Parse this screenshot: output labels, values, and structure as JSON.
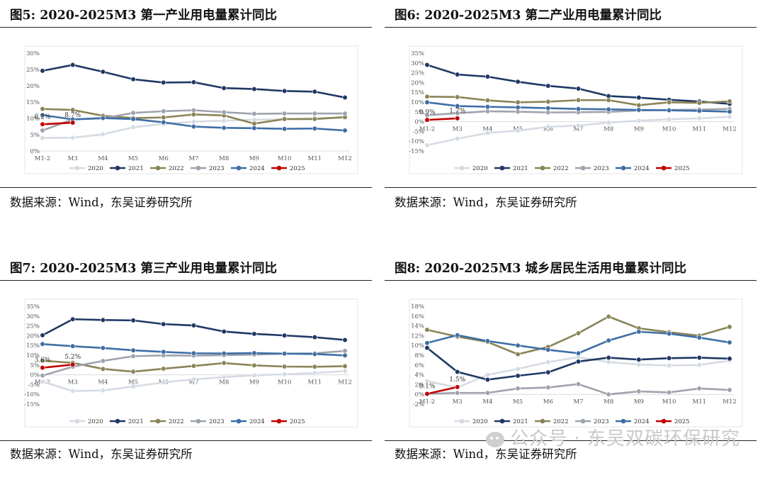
{
  "watermark": "公众号 · 东吴双碳环保研究",
  "panels": [
    {
      "title": "图5:  2020-2025M3 第一产业用电量累计同比",
      "source": "数据来源：Wind，东吴证券研究所"
    },
    {
      "title": "图6:  2020-2025M3 第二产业用电量累计同比",
      "source": "数据来源：Wind，东吴证券研究所"
    },
    {
      "title": "图7:  2020-2025M3 第三产业用电量累计同比",
      "source": "数据来源：Wind，东吴证券研究所"
    },
    {
      "title": "图8:  2020-2025M3 城乡居民生活用电量累计同比",
      "source": "数据来源：Wind，东吴证券研究所"
    }
  ],
  "chart_data": [
    {
      "type": "line",
      "categories": [
        "M1-2",
        "M3",
        "M4",
        "M5",
        "M6",
        "M7",
        "M8",
        "M9",
        "M10",
        "M11",
        "M12"
      ],
      "ylim": [
        0,
        30
      ],
      "yticks": [
        0,
        5,
        10,
        15,
        20,
        25,
        30
      ],
      "grid": false,
      "legend": "bottom",
      "series": [
        {
          "name": "2020",
          "color": "#d5dbe3",
          "values": [
            4.0,
            4.1,
            5.1,
            7.3,
            8.3,
            9.0,
            9.3,
            9.6,
            9.7,
            10.1,
            10.2
          ]
        },
        {
          "name": "2021",
          "color": "#1f3864",
          "values": [
            24.6,
            26.4,
            24.3,
            22.0,
            21.0,
            21.1,
            19.3,
            19.0,
            18.4,
            18.2,
            16.4
          ]
        },
        {
          "name": "2022",
          "color": "#8b8457",
          "values": [
            12.9,
            12.6,
            10.8,
            10.1,
            10.3,
            11.2,
            10.9,
            8.4,
            9.8,
            9.8,
            10.4
          ]
        },
        {
          "name": "2023",
          "color": "#9ea3ad",
          "values": [
            6.3,
            9.7,
            10.0,
            11.7,
            12.2,
            12.5,
            11.9,
            11.4,
            11.5,
            11.5,
            11.5
          ]
        },
        {
          "name": "2024",
          "color": "#3f6ea5",
          "values": [
            11.0,
            9.7,
            10.1,
            9.8,
            8.8,
            7.5,
            7.1,
            7.0,
            6.8,
            6.9,
            6.3
          ]
        },
        {
          "name": "2025",
          "color": "#c00000",
          "values": [
            8.2,
            8.7,
            null,
            null,
            null,
            null,
            null,
            null,
            null,
            null,
            null
          ]
        }
      ],
      "annotations": [
        {
          "text": "8.2%",
          "series": "2025",
          "index": 0
        },
        {
          "text": "8.7%",
          "series": "2025",
          "index": 1
        }
      ]
    },
    {
      "type": "line",
      "categories": [
        "M1-2",
        "M3",
        "M4",
        "M5",
        "M6",
        "M7",
        "M8",
        "M9",
        "M10",
        "M11",
        "M12"
      ],
      "ylim": [
        -15,
        35
      ],
      "yticks": [
        -15,
        -10,
        -5,
        0,
        5,
        10,
        15,
        20,
        25,
        30,
        35
      ],
      "grid": false,
      "legend": "bottom",
      "series": [
        {
          "name": "2020",
          "color": "#d5dbe3",
          "values": [
            -12.0,
            -8.7,
            -5.8,
            -4.6,
            -2.6,
            -2.0,
            -0.5,
            0.5,
            1.2,
            1.7,
            2.5
          ]
        },
        {
          "name": "2021",
          "color": "#1f3864",
          "values": [
            29.0,
            24.1,
            23.0,
            20.4,
            18.3,
            16.9,
            13.1,
            12.3,
            11.2,
            10.3,
            9.1
          ]
        },
        {
          "name": "2022",
          "color": "#8b8457",
          "values": [
            12.8,
            12.6,
            10.9,
            9.9,
            10.2,
            11.0,
            11.0,
            8.4,
            9.9,
            9.6,
            10.4
          ]
        },
        {
          "name": "2023",
          "color": "#9ea3ad",
          "values": [
            3.3,
            4.3,
            5.3,
            5.1,
            4.7,
            4.8,
            5.0,
            5.7,
            6.0,
            6.2,
            6.5
          ]
        },
        {
          "name": "2024",
          "color": "#3f6ea5",
          "values": [
            9.9,
            8.0,
            7.6,
            7.3,
            6.9,
            6.5,
            6.3,
            6.0,
            5.8,
            5.5,
            5.1
          ]
        },
        {
          "name": "2025",
          "color": "#c00000",
          "values": [
            0.9,
            1.7,
            null,
            null,
            null,
            null,
            null,
            null,
            null,
            null,
            null
          ]
        }
      ],
      "annotations": [
        {
          "text": "0.9%",
          "series": "2025",
          "index": 0
        },
        {
          "text": "1.7%",
          "series": "2025",
          "index": 1
        }
      ]
    },
    {
      "type": "line",
      "categories": [
        "M1-2",
        "M3",
        "M4",
        "M5",
        "M6",
        "M7",
        "M8",
        "M9",
        "M10",
        "M11",
        "M12"
      ],
      "ylim": [
        -15,
        35
      ],
      "yticks": [
        -15,
        -10,
        -5,
        0,
        5,
        10,
        15,
        20,
        25,
        30,
        35
      ],
      "grid": false,
      "legend": "bottom",
      "series": [
        {
          "name": "2020",
          "color": "#d5dbe3",
          "values": [
            -3.5,
            -8.3,
            -8.0,
            -6.0,
            -3.9,
            -2.3,
            -1.2,
            -0.3,
            0.3,
            0.9,
            1.9
          ]
        },
        {
          "name": "2021",
          "color": "#1f3864",
          "values": [
            20.2,
            28.4,
            28.0,
            27.8,
            25.9,
            25.2,
            22.1,
            20.9,
            20.1,
            19.2,
            17.8
          ]
        },
        {
          "name": "2022",
          "color": "#8b8457",
          "values": [
            7.2,
            6.1,
            3.0,
            1.6,
            3.1,
            4.5,
            6.0,
            4.8,
            4.2,
            4.1,
            4.4
          ]
        },
        {
          "name": "2023",
          "color": "#9ea3ad",
          "values": [
            -0.4,
            4.1,
            7.1,
            9.5,
            9.9,
            9.8,
            10.0,
            10.3,
            10.8,
            11.0,
            12.2
          ]
        },
        {
          "name": "2024",
          "color": "#3f6ea5",
          "values": [
            15.7,
            14.6,
            13.7,
            12.5,
            11.7,
            11.0,
            10.9,
            11.1,
            10.8,
            10.6,
            9.9
          ]
        },
        {
          "name": "2025",
          "color": "#c00000",
          "values": [
            3.6,
            5.2,
            null,
            null,
            null,
            null,
            null,
            null,
            null,
            null,
            null
          ]
        }
      ],
      "annotations": [
        {
          "text": "3.6%",
          "series": "2025",
          "index": 0
        },
        {
          "text": "5.2%",
          "series": "2025",
          "index": 1
        }
      ]
    },
    {
      "type": "line",
      "categories": [
        "M1-2",
        "M3",
        "M4",
        "M5",
        "M6",
        "M7",
        "M8",
        "M9",
        "M10",
        "M11",
        "M12"
      ],
      "ylim": [
        -2,
        18
      ],
      "yticks": [
        -2,
        0,
        2,
        4,
        6,
        8,
        10,
        12,
        14,
        16,
        18
      ],
      "grid": false,
      "legend": "bottom",
      "series": [
        {
          "name": "2020",
          "color": "#d5dbe3",
          "values": [
            2.7,
            1.4,
            4.0,
            5.2,
            6.6,
            7.6,
            6.6,
            6.1,
            5.9,
            6.0,
            6.9
          ]
        },
        {
          "name": "2021",
          "color": "#1f3864",
          "values": [
            9.5,
            4.6,
            3.0,
            3.8,
            4.5,
            6.7,
            7.5,
            7.1,
            7.4,
            7.5,
            7.3
          ]
        },
        {
          "name": "2022",
          "color": "#8b8457",
          "values": [
            13.2,
            11.8,
            10.7,
            8.2,
            9.7,
            12.5,
            15.9,
            13.5,
            12.7,
            12.0,
            13.8
          ]
        },
        {
          "name": "2023",
          "color": "#9ea3ad",
          "values": [
            0.1,
            0.3,
            0.3,
            1.2,
            1.4,
            2.1,
            0.0,
            0.6,
            0.4,
            1.2,
            0.9
          ]
        },
        {
          "name": "2024",
          "color": "#3f6ea5",
          "values": [
            10.5,
            12.1,
            10.9,
            10.0,
            9.1,
            8.4,
            11.0,
            12.8,
            12.4,
            11.6,
            10.6
          ]
        },
        {
          "name": "2025",
          "color": "#c00000",
          "values": [
            0.1,
            1.5,
            null,
            null,
            null,
            null,
            null,
            null,
            null,
            null,
            null
          ]
        }
      ],
      "annotations": [
        {
          "text": "0.1%",
          "series": "2025",
          "index": 0
        },
        {
          "text": "1.5%",
          "series": "2025",
          "index": 1
        }
      ]
    }
  ]
}
